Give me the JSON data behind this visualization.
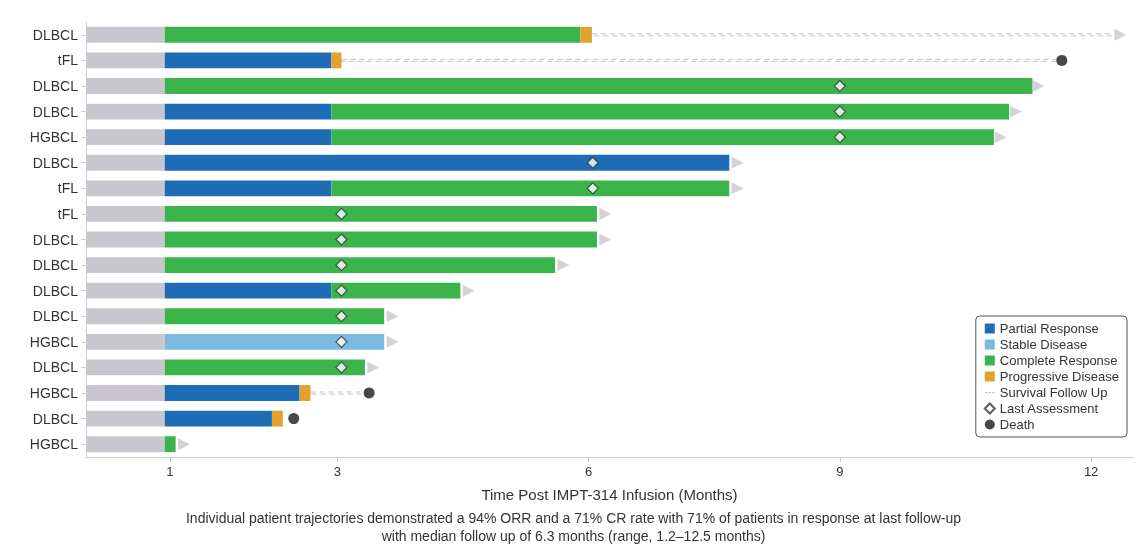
{
  "chart_data": {
    "type": "bar",
    "orientation": "horizontal",
    "stacked": true,
    "xlabel": "Time Post IMPT-314 Infusion (Months)",
    "categories": [
      "DLBCL",
      "tFL",
      "DLBCL",
      "DLBCL",
      "HGBCL",
      "DLBCL",
      "tFL",
      "tFL",
      "DLBCL",
      "DLBCL",
      "DLBCL",
      "DLBCL",
      "HGBCL",
      "DLBCL",
      "HGBCL",
      "DLBCL",
      "HGBCL"
    ],
    "xlim": [
      0,
      12.5
    ],
    "xticks": [
      1,
      3,
      6,
      9,
      12
    ],
    "grid": false,
    "legend": "bottom right",
    "series": [
      {
        "color": "#c9c7cd",
        "values": [
          0.94,
          0.94,
          0.94,
          0.94,
          0.94,
          0.94,
          0.94,
          0.94,
          0.94,
          0.94,
          0.94,
          0.94,
          0.94,
          0.94,
          0.94,
          0.94,
          0.94
        ]
      },
      {
        "name": "Partial Response",
        "color": "#1f6cb6",
        "values": [
          null,
          1.99,
          null,
          1.99,
          1.99,
          6.74,
          1.99,
          null,
          null,
          null,
          1.99,
          null,
          null,
          null,
          1.61,
          1.28,
          null
        ]
      },
      {
        "name": "Stable Disease",
        "color": "#7cb9e2",
        "values": [
          null,
          null,
          null,
          null,
          null,
          null,
          null,
          null,
          null,
          null,
          null,
          null,
          2.62,
          null,
          null,
          null,
          null
        ]
      },
      {
        "name": "Complete Response",
        "color": "#3bb44c",
        "values": [
          4.96,
          null,
          10.36,
          8.09,
          7.91,
          null,
          4.75,
          5.16,
          5.16,
          4.66,
          1.54,
          2.62,
          null,
          2.39,
          null,
          null,
          0.13
        ]
      },
      {
        "name": "Progressive Disease",
        "color": "#e3a22a",
        "values": [
          0.14,
          0.12,
          null,
          null,
          null,
          null,
          null,
          null,
          null,
          null,
          null,
          null,
          null,
          null,
          0.13,
          0.13,
          null
        ]
      },
      {
        "name": "Survival Follow Up",
        "color": "#c4c4c4",
        "line_style": "dashed",
        "values": [
          6.21,
          8.55,
          null,
          null,
          null,
          null,
          null,
          null,
          null,
          null,
          null,
          null,
          null,
          null,
          0.67,
          null,
          null
        ]
      },
      {
        "type": "scatter",
        "name": "Last Assessment",
        "color": "#ffffff",
        "marker": "diamond",
        "values": [
          null,
          null,
          9,
          9,
          9,
          6.05,
          6.05,
          3.05,
          3.05,
          3.05,
          3.05,
          3.05,
          3.05,
          3.05,
          null,
          null,
          null
        ]
      },
      {
        "type": "scatter",
        "color": "#c9c7cd",
        "marker": "triangle",
        "values": [
          12.35,
          null,
          11.37,
          11.1,
          10.92,
          7.78,
          7.78,
          6.2,
          6.2,
          5.7,
          4.57,
          3.66,
          3.66,
          3.43,
          null,
          null,
          1.17
        ]
      },
      {
        "type": "scatter",
        "name": "Death",
        "color": "#1a1a1a",
        "marker": "circle",
        "values": [
          null,
          11.65,
          null,
          null,
          null,
          null,
          null,
          null,
          null,
          null,
          null,
          null,
          null,
          null,
          3.38,
          2.48,
          null
        ]
      }
    ],
    "annotations": [
      "Individual patient trajectories demonstrated a 94% ORR and a 71% CR rate with 71% of patients in response at last follow-up",
      "with median follow up of 6.3 months (range, 1.2–12.5 months)"
    ]
  }
}
